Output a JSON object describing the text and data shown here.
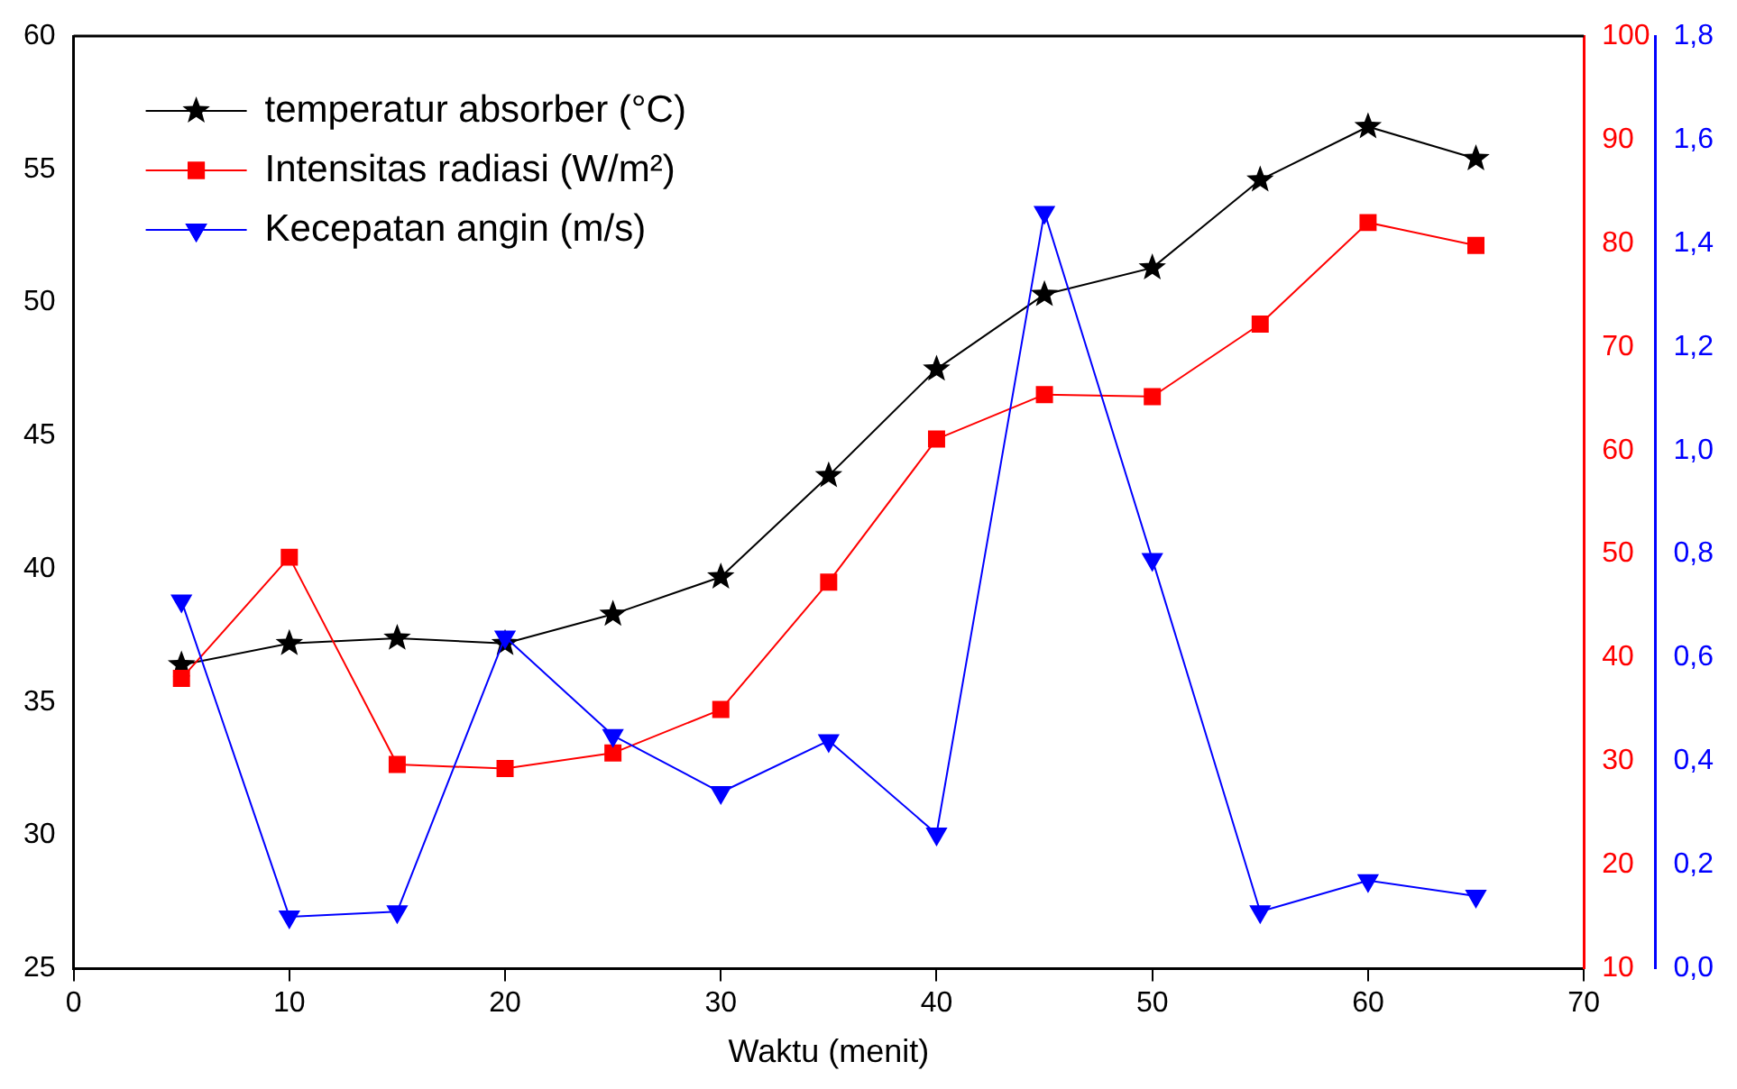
{
  "chart_data": {
    "type": "line",
    "xlabel": "Waktu (menit)",
    "x": [
      5,
      10,
      15,
      20,
      25,
      30,
      35,
      40,
      45,
      50,
      55,
      60,
      65
    ],
    "xlim": [
      0,
      70
    ],
    "xticks": [
      0,
      10,
      20,
      30,
      40,
      50,
      60,
      70
    ],
    "ylim": [
      25,
      60
    ],
    "yticks": [
      25,
      30,
      35,
      40,
      45,
      50,
      55,
      60
    ],
    "y2lim": [
      10,
      100
    ],
    "y2ticks": [
      10,
      20,
      30,
      40,
      50,
      60,
      70,
      80,
      90,
      100
    ],
    "y3lim": [
      0,
      1.8
    ],
    "y3ticks": [
      {
        "value": 0,
        "label": "0,0"
      },
      {
        "value": 0.2,
        "label": "0,2"
      },
      {
        "value": 0.4,
        "label": "0,4"
      },
      {
        "value": 0.6,
        "label": "0,6"
      },
      {
        "value": 0.8,
        "label": "0,8"
      },
      {
        "value": 1.0,
        "label": "1,0"
      },
      {
        "value": 1.2,
        "label": "1,2"
      },
      {
        "value": 1.4,
        "label": "1,4"
      },
      {
        "value": 1.6,
        "label": "1,6"
      },
      {
        "value": 1.8,
        "label": "1,8"
      }
    ],
    "grid": false,
    "legend": "top left",
    "line_style": "solid",
    "series": [
      {
        "name": "temperatur absorber (°C)",
        "color": "#000000",
        "marker": "star",
        "values": [
          36.4,
          37.2,
          37.4,
          37.2,
          38.3,
          39.7,
          43.5,
          47.5,
          50.3,
          51.3,
          54.6,
          56.6,
          55.4
        ]
      },
      {
        "name": "Intensitas radiasi (W/m²)",
        "color": "#ff0000",
        "marker": "square",
        "axis": "y2",
        "values": [
          38,
          49.7,
          29.7,
          29.3,
          30.8,
          35,
          47.3,
          61.1,
          65.4,
          65.2,
          72.2,
          82,
          79.8
        ]
      },
      {
        "name": "Kecepatan angin (m/s)",
        "color": "#0000ff",
        "marker": "triangle",
        "axis": "y3",
        "values": [
          0.71,
          0.1,
          0.11,
          0.64,
          0.45,
          0.34,
          0.44,
          0.26,
          1.46,
          0.79,
          0.11,
          0.17,
          0.14
        ]
      }
    ]
  }
}
